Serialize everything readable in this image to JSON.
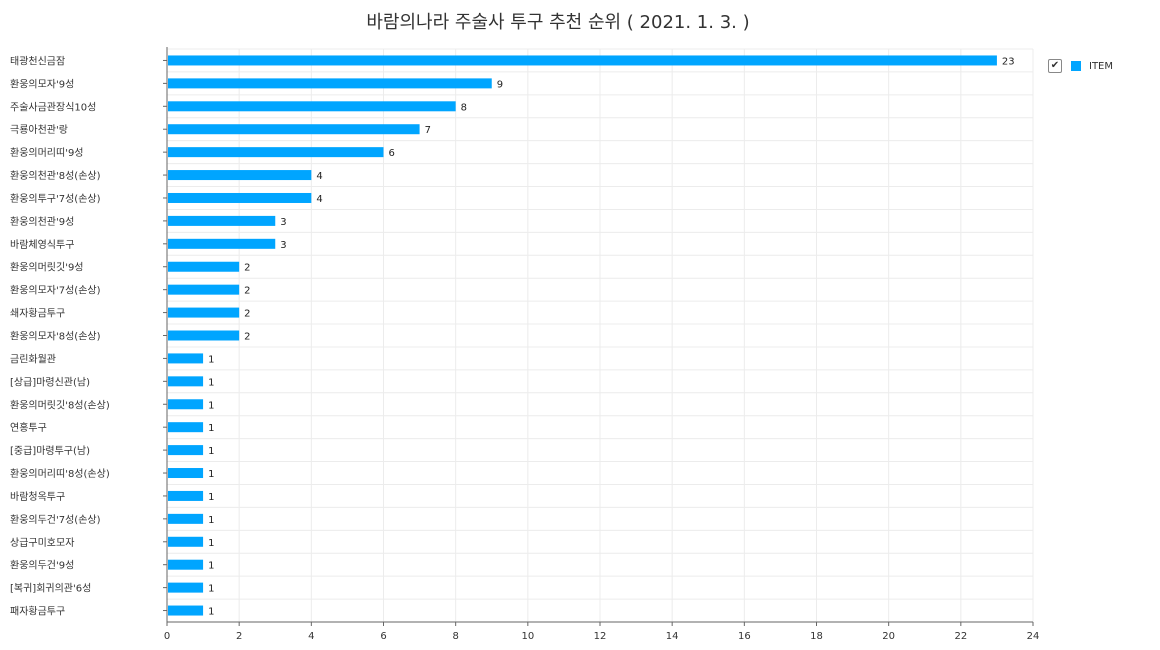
{
  "colors": {
    "bar": "#00a5ff",
    "grid": "#ececec",
    "axis": "#666666"
  },
  "legend": {
    "label": "ITEM",
    "checked_icon": "check-icon"
  },
  "chart_data": {
    "type": "bar",
    "orientation": "horizontal",
    "title": "바람의나라 주술사 투구 추천 순위 ( 2021. 1. 3. )",
    "xlim": [
      0,
      24
    ],
    "xticks": [
      0,
      2,
      4,
      6,
      8,
      10,
      12,
      14,
      16,
      18,
      20,
      22,
      24
    ],
    "grid": true,
    "legend_position": "top-right",
    "categories": [
      "태광천신금잠",
      "환웅의모자'9성",
      "주술사금관장식10성",
      "극룡아천관'랑",
      "환웅의머리띠'9성",
      "환웅의천관'8성(손상)",
      "환웅의투구'7성(손상)",
      "환웅의천관'9성",
      "바람체영식투구",
      "환웅의머릿깃'9성",
      "환웅의모자'7성(손상)",
      "쇄자황금투구",
      "환웅의모자'8성(손상)",
      "금린화월관",
      "[상급]마령신관(남)",
      "환웅의머릿깃'8성(손상)",
      "연홍투구",
      "[중급]마령투구(남)",
      "환웅의머리띠'8성(손상)",
      "바람청옥투구",
      "환웅의두건'7성(손상)",
      "상급구미호모자",
      "환웅의두건'9성",
      "[복귀]회귀의관'6성",
      "패자황금투구"
    ],
    "series": [
      {
        "name": "ITEM",
        "values": [
          23,
          9,
          8,
          7,
          6,
          4,
          4,
          3,
          3,
          2,
          2,
          2,
          2,
          1,
          1,
          1,
          1,
          1,
          1,
          1,
          1,
          1,
          1,
          1,
          1
        ]
      }
    ]
  }
}
